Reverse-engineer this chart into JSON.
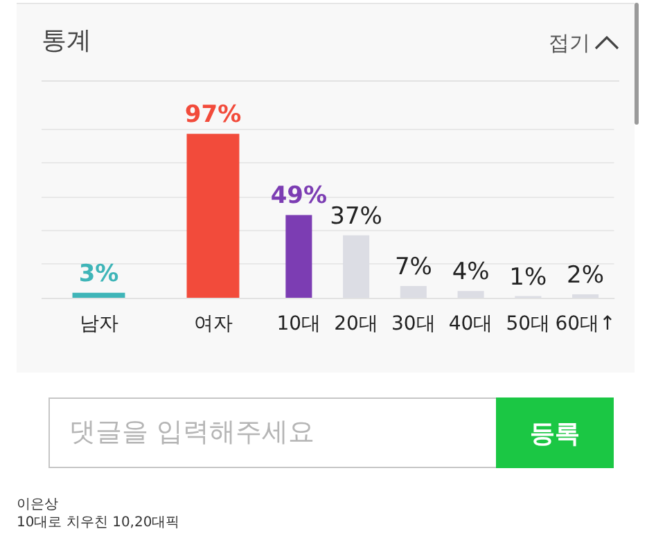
{
  "chart_data": [
    {
      "type": "bar",
      "title": "통계",
      "categories": [
        "남자",
        "여자"
      ],
      "values": [
        3,
        97
      ],
      "colors": [
        "#3fb5b8",
        "#f24b3b"
      ],
      "value_labels": [
        "3%",
        "97%"
      ],
      "ylim": [
        0,
        100
      ],
      "yticks": [
        {
          "value": 0,
          "label": null
        },
        {
          "value": 20,
          "label": null
        },
        {
          "value": 40,
          "label": null
        },
        {
          "value": 60,
          "label": null
        },
        {
          "value": 80,
          "label": null
        },
        {
          "value": 100,
          "label": null
        }
      ],
      "grid": "y",
      "tick_labels": "x",
      "annotations": [
        "접기",
        "댓글을 입력해주세요",
        "등록",
        "이은상",
        "10대로 치우친 10,20대픽"
      ]
    },
    {
      "type": "bar",
      "categories": [
        "10대",
        "20대",
        "30대",
        "40대",
        "50대",
        "60대↑"
      ],
      "values": [
        49,
        37,
        7,
        4,
        1,
        2
      ],
      "colors": [
        "#7c3db3",
        "#dcdde4",
        "#dcdde4",
        "#dcdde4",
        "#dcdde4",
        "#dcdde4"
      ],
      "value_labels": [
        "49%",
        "37%",
        "7%",
        "4%",
        "1%",
        "2%"
      ],
      "ylim": [
        0,
        100
      ],
      "yticks": [
        {
          "value": 0,
          "label": null
        },
        {
          "value": 20,
          "label": null
        },
        {
          "value": 40,
          "label": null
        },
        {
          "value": 60,
          "label": null
        },
        {
          "value": 80,
          "label": null
        },
        {
          "value": 100,
          "label": null
        }
      ],
      "grid": "y",
      "tick_labels": "x"
    }
  ]
}
